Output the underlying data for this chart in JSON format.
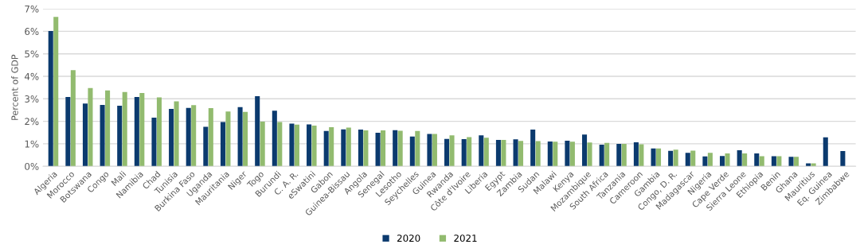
{
  "chart_data": {
    "type": "bar",
    "ylabel": "Percent of GDP",
    "categories": [
      "Algeria",
      "Morocco",
      "Botswana",
      "Congo",
      "Mali",
      "Namibia",
      "Chad",
      "Tunisia",
      "Burkina Faso",
      "Uganda",
      "Mauritania",
      "Niger",
      "Togo",
      "Burundi",
      "C. A. R.",
      "eSwatini",
      "Gabon",
      "Guinea-Bissau",
      "Angola",
      "Senegal",
      "Lesotho",
      "Seychelles",
      "Guinea",
      "Rwanda",
      "Côte d'Ivoire",
      "Liberia",
      "Egypt",
      "Zambia",
      "Sudan",
      "Malawi",
      "Kenya",
      "Mozambique",
      "South Africa",
      "Tanzania",
      "Cameroon",
      "Gambia",
      "Congo, D. R.",
      "Madagascar",
      "Nigeria",
      "Cape Verde",
      "Sierra Leone",
      "Ethiopia",
      "Benin",
      "Ghana",
      "Mauritius",
      "Eq. Guinea",
      "Zimbabwe"
    ],
    "series": [
      {
        "name": "2020",
        "color": "#0b3a6e",
        "values": [
          6.01,
          3.08,
          2.79,
          2.73,
          2.69,
          3.08,
          2.16,
          2.55,
          2.6,
          1.76,
          1.97,
          2.63,
          3.12,
          2.47,
          1.9,
          1.86,
          1.57,
          1.64,
          1.63,
          1.49,
          1.61,
          1.32,
          1.44,
          1.22,
          1.21,
          1.38,
          1.17,
          1.2,
          1.63,
          1.1,
          1.14,
          1.41,
          0.96,
          1.0,
          1.07,
          0.79,
          0.69,
          0.6,
          0.44,
          0.46,
          0.71,
          0.57,
          0.45,
          0.42,
          0.13,
          1.29,
          0.68
        ]
      },
      {
        "name": "2021",
        "color": "#92bb6f",
        "values": [
          6.64,
          4.27,
          3.48,
          3.37,
          3.3,
          3.26,
          3.06,
          2.89,
          2.72,
          2.59,
          2.44,
          2.42,
          1.99,
          1.97,
          1.85,
          1.81,
          1.74,
          1.72,
          1.6,
          1.6,
          1.58,
          1.57,
          1.44,
          1.38,
          1.3,
          1.27,
          1.17,
          1.13,
          1.12,
          1.09,
          1.09,
          1.06,
          1.04,
          1.0,
          0.98,
          0.79,
          0.74,
          0.7,
          0.6,
          0.57,
          0.57,
          0.45,
          0.45,
          0.42,
          0.13,
          null,
          null
        ]
      }
    ],
    "ylim": [
      0,
      7
    ],
    "yticks": [
      {
        "value": 0,
        "label": "0%"
      },
      {
        "value": 1,
        "label": "1%"
      },
      {
        "value": 2,
        "label": "2%"
      },
      {
        "value": 3,
        "label": "3%"
      },
      {
        "value": 4,
        "label": "4%"
      },
      {
        "value": 5,
        "label": "5%"
      },
      {
        "value": 6,
        "label": "6%"
      },
      {
        "value": 7,
        "label": "7%"
      }
    ],
    "grid": "y",
    "legend": "bottom"
  }
}
